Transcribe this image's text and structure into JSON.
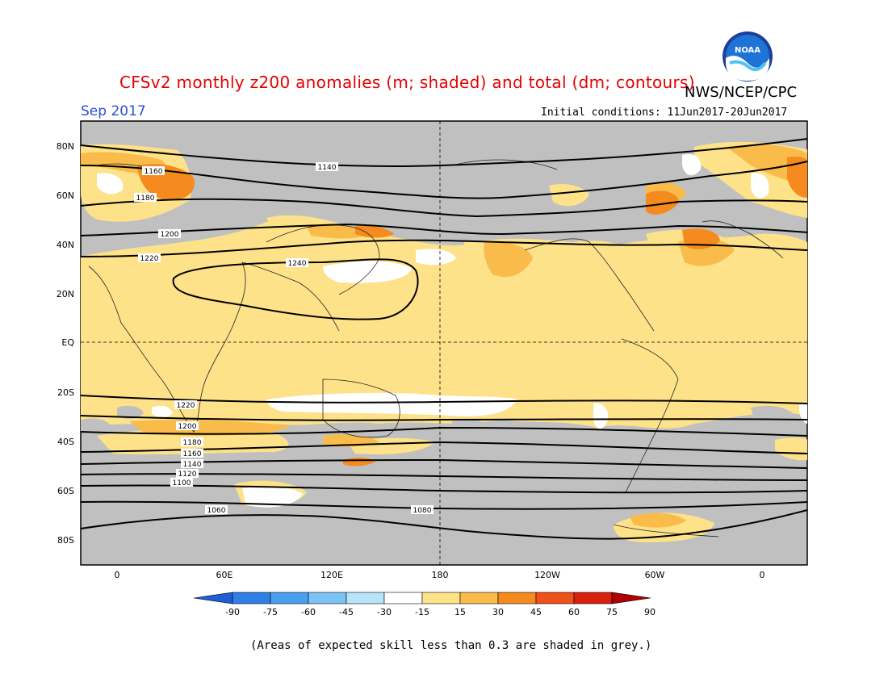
{
  "header": {
    "title": "CFSv2 monthly z200 anomalies (m; shaded) and total (dm; contours)",
    "agency": "NWS/NCEP/CPC",
    "month": "Sep 2017",
    "initial_conditions": "Initial conditions: 11Jun2017-20Jun2017",
    "logo_text": "NOAA"
  },
  "axes": {
    "lat_labels": [
      "80N",
      "60N",
      "40N",
      "20N",
      "EQ",
      "20S",
      "40S",
      "60S",
      "80S"
    ],
    "lon_labels": [
      "0",
      "60E",
      "120E",
      "180",
      "120W",
      "60W",
      "0"
    ]
  },
  "contours": {
    "labels": [
      "1140",
      "1160",
      "1180",
      "1200",
      "1220",
      "1240",
      "1220",
      "1200",
      "1180",
      "1160",
      "1140",
      "1120",
      "1100",
      "1080",
      "1060"
    ]
  },
  "colorbar": {
    "levels": [
      "-90",
      "-75",
      "-60",
      "-45",
      "-30",
      "-15",
      "15",
      "30",
      "45",
      "60",
      "75",
      "90"
    ],
    "colors": [
      "#1f5fd6",
      "#2f7fe6",
      "#4aa0ef",
      "#7cc2f5",
      "#b6e4f8",
      "#ffffff",
      "#fde28a",
      "#f9bc4a",
      "#f58a1e",
      "#f0501a",
      "#d9200f",
      "#b00000"
    ]
  },
  "footnote": "(Areas of expected skill less than 0.3 are shaded in grey.)",
  "colors": {
    "background_grey": "#c0c0c0",
    "title_red": "#e60000",
    "month_blue": "#2a4fd6"
  }
}
